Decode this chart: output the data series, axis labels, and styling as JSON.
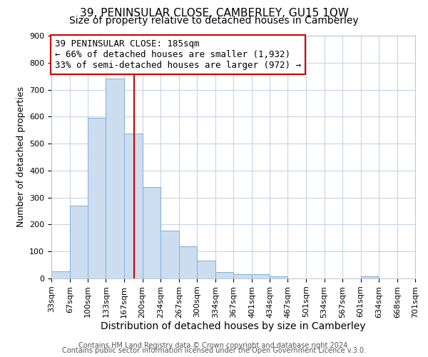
{
  "title": "39, PENINSULAR CLOSE, CAMBERLEY, GU15 1QW",
  "subtitle": "Size of property relative to detached houses in Camberley",
  "xlabel": "Distribution of detached houses by size in Camberley",
  "ylabel": "Number of detached properties",
  "footnote1": "Contains HM Land Registry data © Crown copyright and database right 2024.",
  "footnote2": "Contains public sector information licensed under the Open Government Licence v.3.0.",
  "bin_edges": [
    33,
    67,
    100,
    133,
    167,
    200,
    234,
    267,
    300,
    334,
    367,
    401,
    434,
    467,
    501,
    534,
    567,
    601,
    634,
    668,
    701
  ],
  "bar_heights": [
    27,
    270,
    595,
    740,
    537,
    338,
    178,
    120,
    67,
    25,
    15,
    15,
    8,
    0,
    0,
    0,
    0,
    8,
    0,
    0
  ],
  "bar_color": "#ccddf0",
  "bar_edge_color": "#7db0d8",
  "vline_x": 185,
  "vline_color": "#cc0000",
  "annotation_text": "39 PENINSULAR CLOSE: 185sqm\n← 66% of detached houses are smaller (1,932)\n33% of semi-detached houses are larger (972) →",
  "annotation_box_color": "#cc0000",
  "ylim": [
    0,
    900
  ],
  "yticks": [
    0,
    100,
    200,
    300,
    400,
    500,
    600,
    700,
    800,
    900
  ],
  "background_color": "#ffffff",
  "grid_color": "#c8d4e8",
  "title_fontsize": 11,
  "subtitle_fontsize": 10,
  "xlabel_fontsize": 10,
  "ylabel_fontsize": 9,
  "tick_fontsize": 8,
  "annotation_fontsize": 9,
  "footnote_fontsize": 7
}
